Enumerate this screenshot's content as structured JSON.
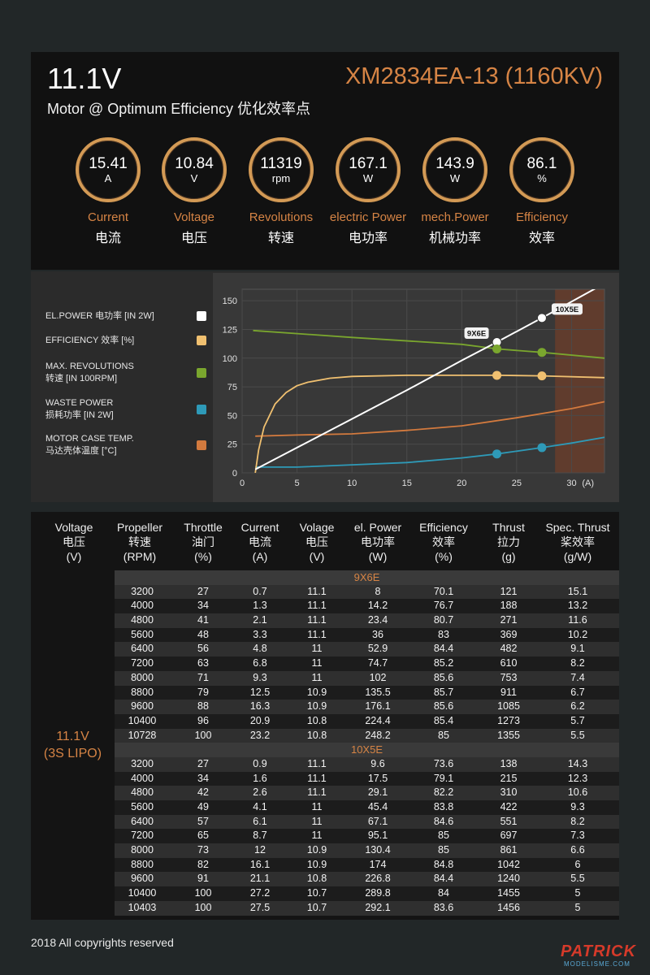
{
  "header": {
    "voltage": "11.1V",
    "model": "XM2834EA-13 (1160KV)",
    "subtitle": "Motor @ Optimum Efficiency  优化效率点"
  },
  "stats": [
    {
      "value": "15.41",
      "unit": "A",
      "en": "Current",
      "cn": "电流"
    },
    {
      "value": "10.84",
      "unit": "V",
      "en": "Voltage",
      "cn": "电压"
    },
    {
      "value": "11319",
      "unit": "rpm",
      "en": "Revolutions",
      "cn": "转速"
    },
    {
      "value": "167.1",
      "unit": "W",
      "en": "electric Power",
      "cn": "电功率"
    },
    {
      "value": "143.9",
      "unit": "W",
      "en": "mech.Power",
      "cn": "机械功率"
    },
    {
      "value": "86.1",
      "unit": "%",
      "en": "Efficiency",
      "cn": "效率"
    }
  ],
  "legend": [
    {
      "line1": "EL.POWER 电功率 [IN 2W]",
      "line2": "",
      "color": "#ffffff"
    },
    {
      "line1": "EFFICIENCY 效率 [%]",
      "line2": "",
      "color": "#f0c070"
    },
    {
      "line1": "MAX. REVOLUTIONS",
      "line2": "转速 [IN 100RPM]",
      "color": "#7aa62e"
    },
    {
      "line1": "WASTE POWER",
      "line2": "损耗功率 [IN 2W]",
      "color": "#2e9ab8"
    },
    {
      "line1": "MOTOR CASE TEMP.",
      "line2": "马达壳体温度 [°C]",
      "color": "#d37a3e"
    }
  ],
  "chart_data": {
    "type": "line",
    "xlabel": "(A)",
    "ylabel": "",
    "xlim": [
      0,
      33
    ],
    "ylim": [
      0,
      160
    ],
    "x_ticks": [
      0,
      5,
      10,
      15,
      20,
      25,
      30
    ],
    "y_ticks": [
      0,
      25,
      50,
      75,
      100,
      125,
      150
    ],
    "shaded_region_x": [
      28.5,
      33
    ],
    "series": [
      {
        "name": "EL.POWER 电功率 [IN 2W]",
        "color": "#ffffff",
        "x": [
          1.2,
          5,
          10,
          15,
          20,
          23.2,
          27.3,
          33
        ],
        "y": [
          3,
          22,
          47,
          72,
          98,
          114,
          135,
          165
        ]
      },
      {
        "name": "EFFICIENCY 效率 [%]",
        "color": "#f0c070",
        "x": [
          1.2,
          1.5,
          2,
          3,
          4,
          5,
          6,
          8,
          10,
          15,
          20,
          23.2,
          27.3,
          33
        ],
        "y": [
          0,
          20,
          40,
          60,
          70,
          76,
          79,
          82.5,
          84,
          85,
          85,
          85,
          84.5,
          83
        ]
      },
      {
        "name": "MAX. REVOLUTIONS 转速 [IN 100RPM]",
        "color": "#7aa62e",
        "x": [
          1,
          10,
          20,
          23.2,
          27.3,
          33
        ],
        "y": [
          124,
          118,
          112,
          108,
          105,
          100
        ]
      },
      {
        "name": "WASTE POWER 损耗功率 [IN 2W]",
        "color": "#2e9ab8",
        "x": [
          1.2,
          5,
          10,
          15,
          20,
          23.2,
          27.3,
          30,
          33
        ],
        "y": [
          5,
          5,
          7,
          9,
          13,
          16.5,
          22,
          26,
          31
        ]
      },
      {
        "name": "MOTOR CASE TEMP. 马达壳体温度 [°C]",
        "color": "#d37a3e",
        "x": [
          1.2,
          5,
          10,
          15,
          20,
          25,
          30,
          33
        ],
        "y": [
          32,
          33,
          34,
          37,
          41,
          48,
          56,
          62
        ]
      }
    ],
    "markers": [
      {
        "label": "9X6E",
        "x": 23.2,
        "values": [
          114,
          85,
          108,
          16.5
        ]
      },
      {
        "label": "10X5E",
        "x": 27.3,
        "values": [
          135,
          84.5,
          105,
          22
        ]
      }
    ]
  },
  "table": {
    "headers": [
      {
        "l1": "Voltage",
        "l2": "电压",
        "l3": "(V)"
      },
      {
        "l1": "Propeller",
        "l2": "转速",
        "l3": "(RPM)"
      },
      {
        "l1": "Throttle",
        "l2": "油门",
        "l3": "(%)"
      },
      {
        "l1": "Current",
        "l2": "电流",
        "l3": "(A)"
      },
      {
        "l1": "Volage",
        "l2": "电压",
        "l3": "(V)"
      },
      {
        "l1": "el. Power",
        "l2": "电功率",
        "l3": "(W)"
      },
      {
        "l1": "Efficiency",
        "l2": "效率",
        "l3": "(%)"
      },
      {
        "l1": "Thrust",
        "l2": "拉力",
        "l3": "(g)"
      },
      {
        "l1": "Spec. Thrust",
        "l2": "桨效率",
        "l3": "(g/W)"
      }
    ],
    "voltage_line1": "11.1V",
    "voltage_line2": "(3S LIPO)",
    "groups": [
      {
        "name": "9X6E",
        "rows": [
          [
            "3200",
            "27",
            "0.7",
            "11.1",
            "8",
            "70.1",
            "121",
            "15.1"
          ],
          [
            "4000",
            "34",
            "1.3",
            "11.1",
            "14.2",
            "76.7",
            "188",
            "13.2"
          ],
          [
            "4800",
            "41",
            "2.1",
            "11.1",
            "23.4",
            "80.7",
            "271",
            "11.6"
          ],
          [
            "5600",
            "48",
            "3.3",
            "11.1",
            "36",
            "83",
            "369",
            "10.2"
          ],
          [
            "6400",
            "56",
            "4.8",
            "11",
            "52.9",
            "84.4",
            "482",
            "9.1"
          ],
          [
            "7200",
            "63",
            "6.8",
            "11",
            "74.7",
            "85.2",
            "610",
            "8.2"
          ],
          [
            "8000",
            "71",
            "9.3",
            "11",
            "102",
            "85.6",
            "753",
            "7.4"
          ],
          [
            "8800",
            "79",
            "12.5",
            "10.9",
            "135.5",
            "85.7",
            "911",
            "6.7"
          ],
          [
            "9600",
            "88",
            "16.3",
            "10.9",
            "176.1",
            "85.6",
            "1085",
            "6.2"
          ],
          [
            "10400",
            "96",
            "20.9",
            "10.8",
            "224.4",
            "85.4",
            "1273",
            "5.7"
          ],
          [
            "10728",
            "100",
            "23.2",
            "10.8",
            "248.2",
            "85",
            "1355",
            "5.5"
          ]
        ]
      },
      {
        "name": "10X5E",
        "rows": [
          [
            "3200",
            "27",
            "0.9",
            "11.1",
            "9.6",
            "73.6",
            "138",
            "14.3"
          ],
          [
            "4000",
            "34",
            "1.6",
            "11.1",
            "17.5",
            "79.1",
            "215",
            "12.3"
          ],
          [
            "4800",
            "42",
            "2.6",
            "11.1",
            "29.1",
            "82.2",
            "310",
            "10.6"
          ],
          [
            "5600",
            "49",
            "4.1",
            "11",
            "45.4",
            "83.8",
            "422",
            "9.3"
          ],
          [
            "6400",
            "57",
            "6.1",
            "11",
            "67.1",
            "84.6",
            "551",
            "8.2"
          ],
          [
            "7200",
            "65",
            "8.7",
            "11",
            "95.1",
            "85",
            "697",
            "7.3"
          ],
          [
            "8000",
            "73",
            "12",
            "10.9",
            "130.4",
            "85",
            "861",
            "6.6"
          ],
          [
            "8800",
            "82",
            "16.1",
            "10.9",
            "174",
            "84.8",
            "1042",
            "6"
          ],
          [
            "9600",
            "91",
            "21.1",
            "10.8",
            "226.8",
            "84.4",
            "1240",
            "5.5"
          ],
          [
            "10400",
            "100",
            "27.2",
            "10.7",
            "289.8",
            "84",
            "1455",
            "5"
          ],
          [
            "10403",
            "100",
            "27.5",
            "10.7",
            "292.1",
            "83.6",
            "1456",
            "5"
          ]
        ]
      }
    ]
  },
  "footer": {
    "copyright": "2018 All copyrights reserved",
    "logo": "PATRICK",
    "logo_sub": "MODELISME.COM"
  },
  "colors": {
    "accent": "#d68445",
    "ring": "#d39a55"
  }
}
